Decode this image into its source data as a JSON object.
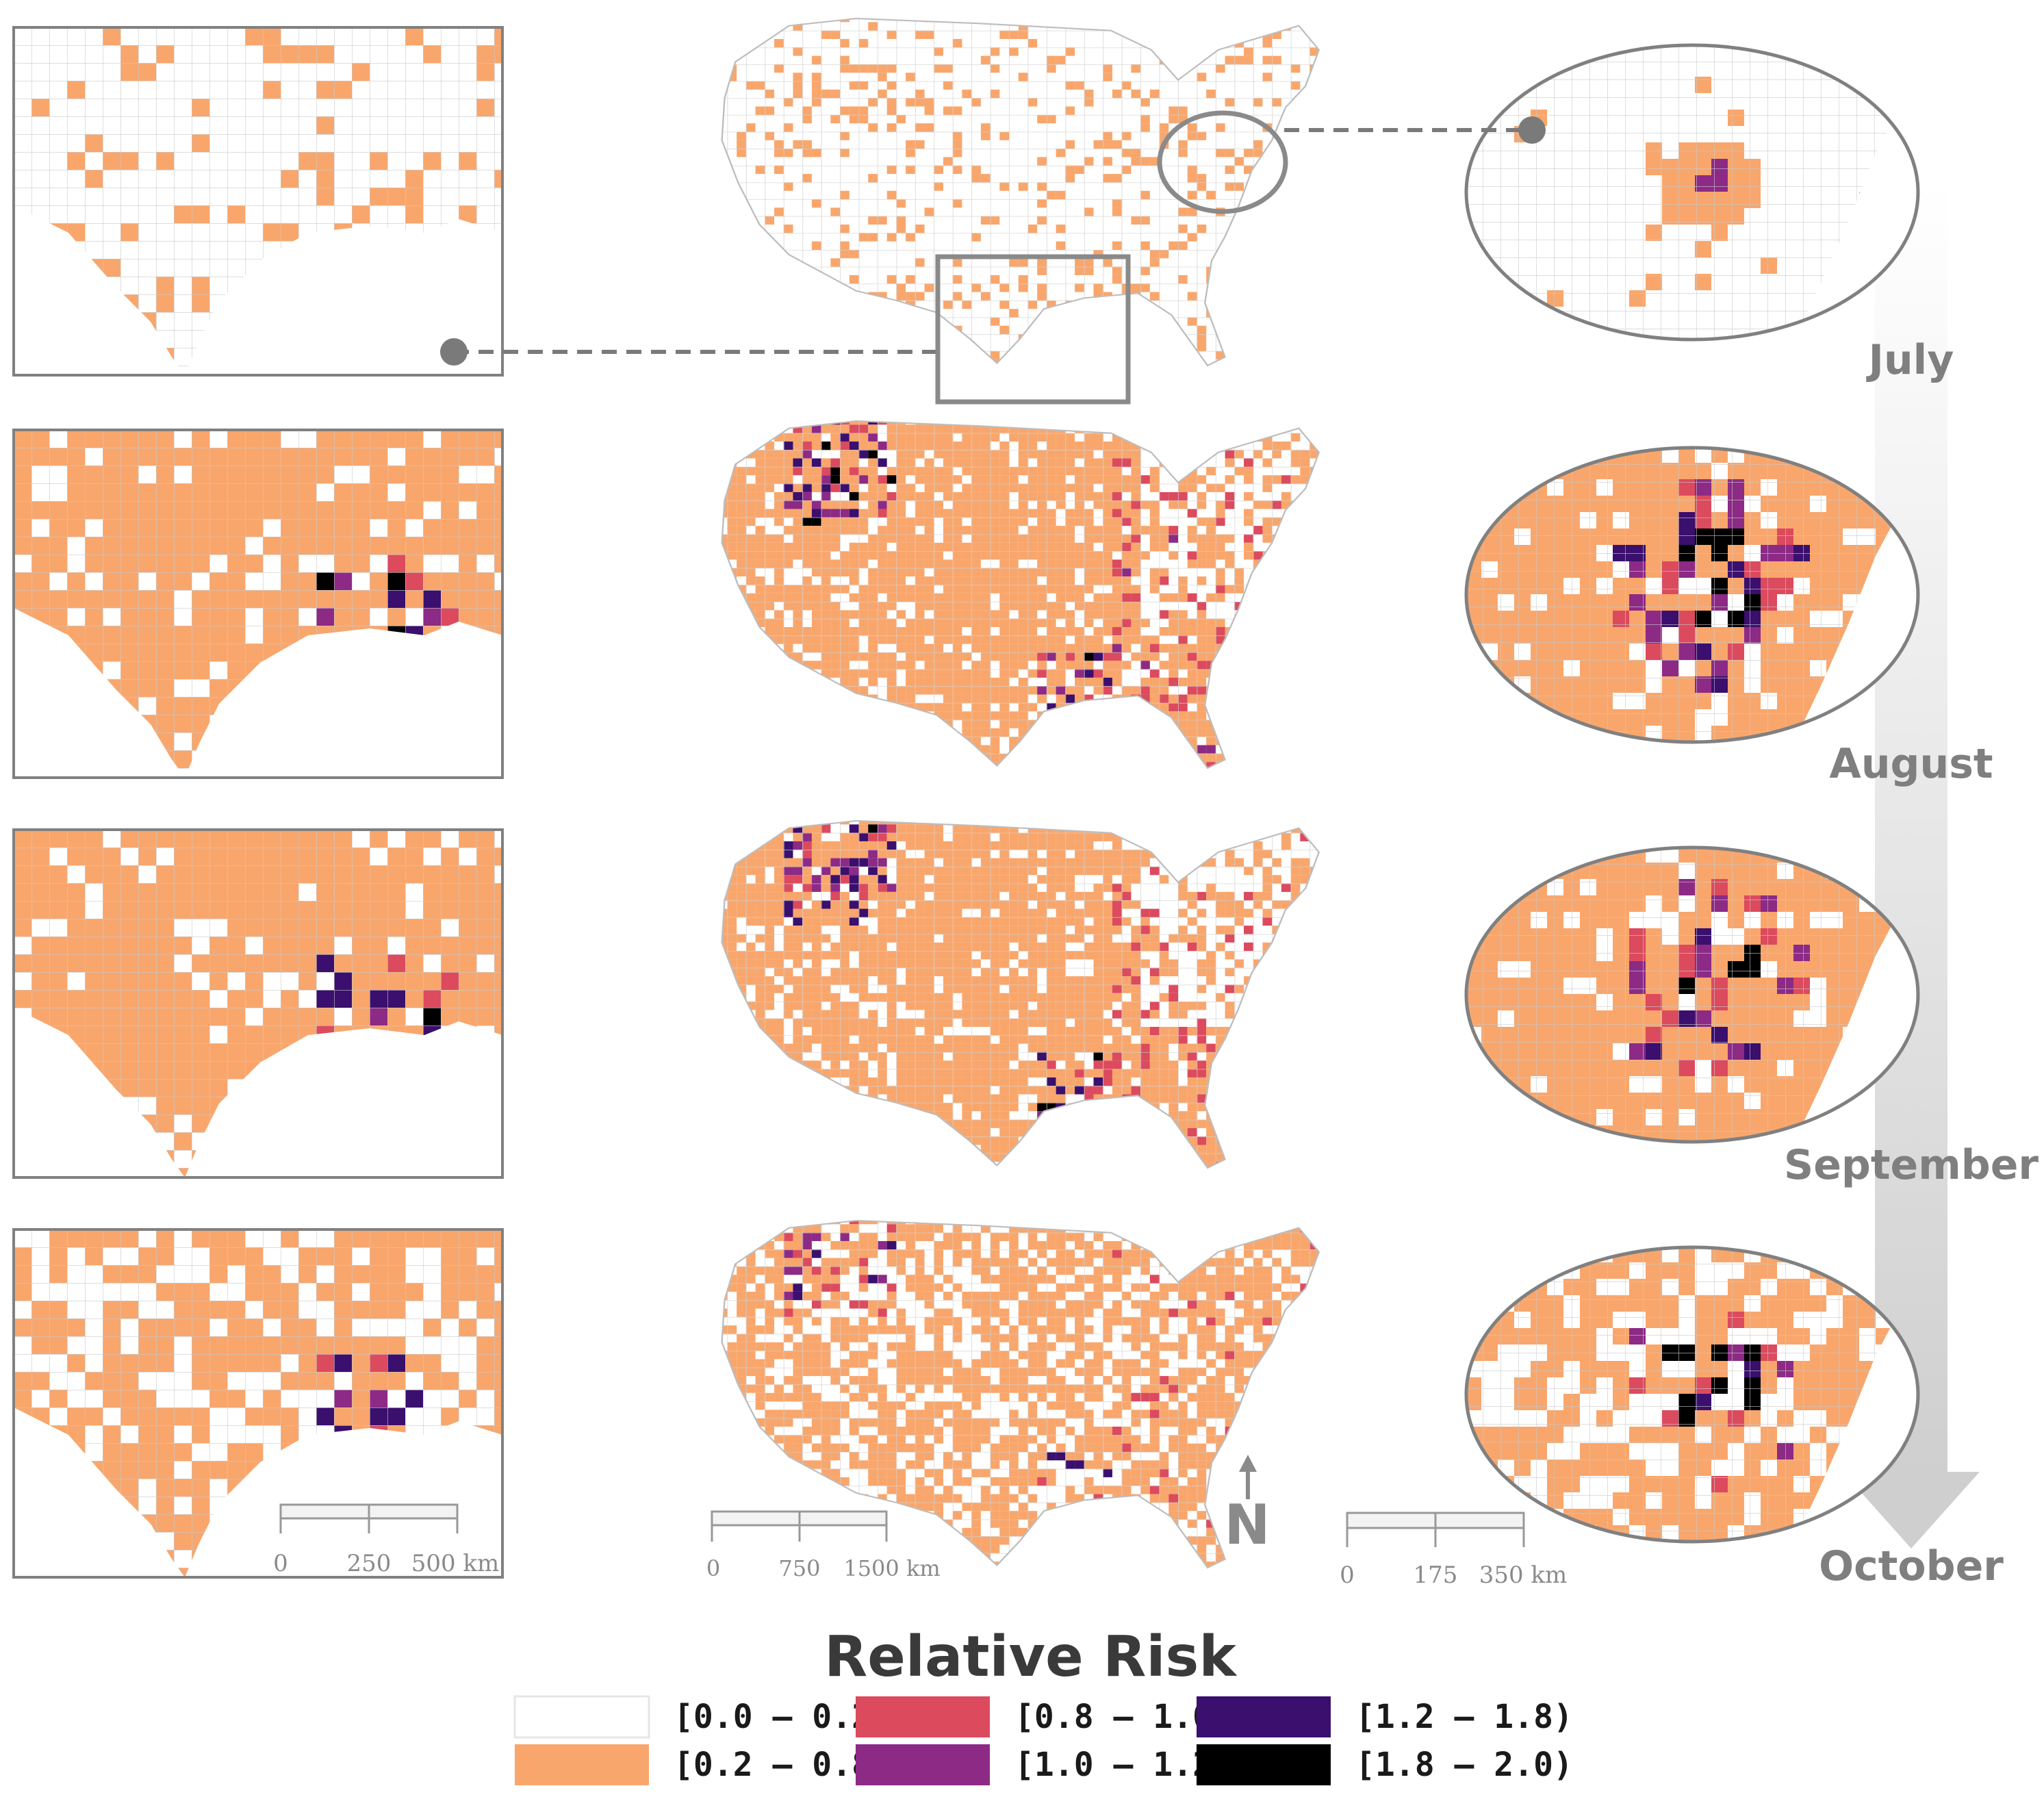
{
  "legend": {
    "title": "Relative Risk",
    "classes": [
      {
        "label": "[0.0 – 0.2)",
        "color": "#ffffff"
      },
      {
        "label": "[0.2 – 0.8)",
        "color": "#f9a66c"
      },
      {
        "label": "[0.8 – 1.0)",
        "color": "#dc4a5e"
      },
      {
        "label": "[1.0 – 1.2)",
        "color": "#8c2a86"
      },
      {
        "label": "[1.2 – 1.8)",
        "color": "#3a0f6e"
      },
      {
        "label": "[1.8 – 2.0)",
        "color": "#000000"
      }
    ]
  },
  "months": [
    {
      "name": "July",
      "level": 0
    },
    {
      "name": "August",
      "level": 2
    },
    {
      "name": "September",
      "level": 3
    },
    {
      "name": "October",
      "level": 1
    }
  ],
  "scalebars": {
    "texas": [
      "0",
      "250",
      "500 km"
    ],
    "us": [
      "0",
      "750",
      "1500 km"
    ],
    "northeast": [
      "0",
      "175",
      "350 km"
    ]
  },
  "north_arrow": "N",
  "colors": {
    "frame": "#808080",
    "connector": "#7a7a7a",
    "arrow": "#d6d6d6",
    "outline": "#bdbdbd",
    "label": "#7f7f7f"
  }
}
